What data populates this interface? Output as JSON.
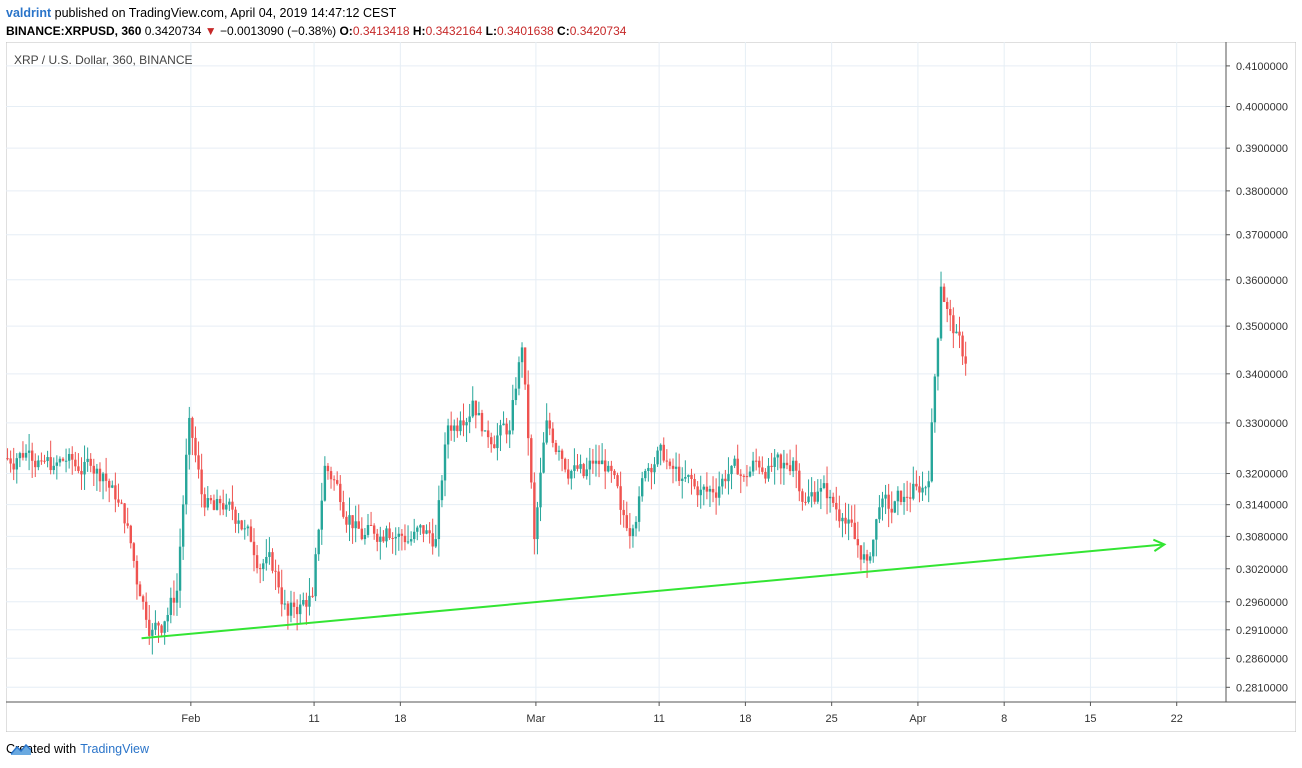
{
  "header": {
    "user": "valdrint",
    "published_text": "published on TradingView.com, April 04, 2019 14:47:12 CEST",
    "symbol": "BINANCE:XRPUSD, 360",
    "last_price": "0.3420734",
    "change": "−0.0013090 (−0.38%)",
    "open_label": "O:",
    "open": "0.3413418",
    "high_label": "H:",
    "high": "0.3432164",
    "low_label": "L:",
    "low": "0.3401638",
    "close_label": "C:",
    "close": "0.3420734"
  },
  "chart_title": "XRP / U.S. Dollar, 360, BINANCE",
  "footer": {
    "created_with": "Created with",
    "brand": "TradingView"
  },
  "colors": {
    "up": "#26a69a",
    "down": "#ef5350",
    "trendline": "#33e533",
    "grid": "#e6eef5",
    "axis_text": "#333333"
  },
  "chart_data": {
    "type": "candlestick",
    "title": "XRP / U.S. Dollar, 360, BINANCE",
    "y_scale": "log",
    "ylim": [
      0.2785,
      0.416
    ],
    "y_ticks": [
      "0.4100000",
      "0.4000000",
      "0.3900000",
      "0.3800000",
      "0.3700000",
      "0.3600000",
      "0.3500000",
      "0.3400000",
      "0.3300000",
      "0.3200000",
      "0.3140000",
      "0.3080000",
      "0.3020000",
      "0.2960000",
      "0.2910000",
      "0.2860000",
      "0.2810000"
    ],
    "x_ticks": [
      {
        "label": "Feb",
        "date": "2019-02-01"
      },
      {
        "label": "11",
        "date": "2019-02-11"
      },
      {
        "label": "18",
        "date": "2019-02-18"
      },
      {
        "label": "Mar",
        "date": "2019-03-01"
      },
      {
        "label": "11",
        "date": "2019-03-11"
      },
      {
        "label": "18",
        "date": "2019-03-18"
      },
      {
        "label": "25",
        "date": "2019-03-25"
      },
      {
        "label": "Apr",
        "date": "2019-04-01"
      },
      {
        "label": "8",
        "date": "2019-04-08"
      },
      {
        "label": "15",
        "date": "2019-04-15"
      },
      {
        "label": "22",
        "date": "2019-04-22"
      }
    ],
    "xlim": [
      "2019-01-17",
      "2019-04-26"
    ],
    "close_series_daily": [
      {
        "date": "2019-01-17",
        "close": 0.323
      },
      {
        "date": "2019-01-18",
        "close": 0.3245
      },
      {
        "date": "2019-01-19",
        "close": 0.3225
      },
      {
        "date": "2019-01-20",
        "close": 0.3215
      },
      {
        "date": "2019-01-21",
        "close": 0.3225
      },
      {
        "date": "2019-01-22",
        "close": 0.3205
      },
      {
        "date": "2019-01-23",
        "close": 0.3215
      },
      {
        "date": "2019-01-24",
        "close": 0.32
      },
      {
        "date": "2019-01-25",
        "close": 0.315
      },
      {
        "date": "2019-01-26",
        "close": 0.31
      },
      {
        "date": "2019-01-27",
        "close": 0.297
      },
      {
        "date": "2019-01-28",
        "close": 0.291
      },
      {
        "date": "2019-01-29",
        "close": 0.2925
      },
      {
        "date": "2019-01-30",
        "close": 0.298
      },
      {
        "date": "2019-01-31",
        "close": 0.331
      },
      {
        "date": "2019-02-01",
        "close": 0.316
      },
      {
        "date": "2019-02-02",
        "close": 0.313
      },
      {
        "date": "2019-02-03",
        "close": 0.314
      },
      {
        "date": "2019-02-04",
        "close": 0.311
      },
      {
        "date": "2019-02-05",
        "close": 0.307
      },
      {
        "date": "2019-02-06",
        "close": 0.303
      },
      {
        "date": "2019-02-07",
        "close": 0.3015
      },
      {
        "date": "2019-02-08",
        "close": 0.2935
      },
      {
        "date": "2019-02-09",
        "close": 0.2955
      },
      {
        "date": "2019-02-10",
        "close": 0.297
      },
      {
        "date": "2019-02-11",
        "close": 0.3215
      },
      {
        "date": "2019-02-12",
        "close": 0.318
      },
      {
        "date": "2019-02-13",
        "close": 0.312
      },
      {
        "date": "2019-02-14",
        "close": 0.3075
      },
      {
        "date": "2019-02-15",
        "close": 0.3085
      },
      {
        "date": "2019-02-16",
        "close": 0.3095
      },
      {
        "date": "2019-02-17",
        "close": 0.3085
      },
      {
        "date": "2019-02-18",
        "close": 0.3075
      },
      {
        "date": "2019-02-19",
        "close": 0.3085
      },
      {
        "date": "2019-02-20",
        "close": 0.3075
      },
      {
        "date": "2019-02-21",
        "close": 0.3295
      },
      {
        "date": "2019-02-22",
        "close": 0.3305
      },
      {
        "date": "2019-02-23",
        "close": 0.3345
      },
      {
        "date": "2019-02-24",
        "close": 0.3285
      },
      {
        "date": "2019-02-25",
        "close": 0.3275
      },
      {
        "date": "2019-02-26",
        "close": 0.3285
      },
      {
        "date": "2019-02-27",
        "close": 0.3455
      },
      {
        "date": "2019-02-28",
        "close": 0.3075
      },
      {
        "date": "2019-03-01",
        "close": 0.3305
      },
      {
        "date": "2019-03-02",
        "close": 0.3245
      },
      {
        "date": "2019-03-03",
        "close": 0.3205
      },
      {
        "date": "2019-03-04",
        "close": 0.3195
      },
      {
        "date": "2019-03-05",
        "close": 0.3225
      },
      {
        "date": "2019-03-06",
        "close": 0.3215
      },
      {
        "date": "2019-03-07",
        "close": 0.313
      },
      {
        "date": "2019-03-08",
        "close": 0.3095
      },
      {
        "date": "2019-03-09",
        "close": 0.3205
      },
      {
        "date": "2019-03-10",
        "close": 0.3245
      },
      {
        "date": "2019-03-11",
        "close": 0.3215
      },
      {
        "date": "2019-03-12",
        "close": 0.319
      },
      {
        "date": "2019-03-13",
        "close": 0.3175
      },
      {
        "date": "2019-03-14",
        "close": 0.3165
      },
      {
        "date": "2019-03-15",
        "close": 0.3175
      },
      {
        "date": "2019-03-16",
        "close": 0.3215
      },
      {
        "date": "2019-03-17",
        "close": 0.3195
      },
      {
        "date": "2019-03-18",
        "close": 0.3225
      },
      {
        "date": "2019-03-19",
        "close": 0.3215
      },
      {
        "date": "2019-03-20",
        "close": 0.321
      },
      {
        "date": "2019-03-21",
        "close": 0.3225
      },
      {
        "date": "2019-03-22",
        "close": 0.3145
      },
      {
        "date": "2019-03-23",
        "close": 0.3165
      },
      {
        "date": "2019-03-24",
        "close": 0.3155
      },
      {
        "date": "2019-03-25",
        "close": 0.3115
      },
      {
        "date": "2019-03-26",
        "close": 0.3075
      },
      {
        "date": "2019-03-27",
        "close": 0.3035
      },
      {
        "date": "2019-03-28",
        "close": 0.3135
      },
      {
        "date": "2019-03-29",
        "close": 0.3125
      },
      {
        "date": "2019-03-30",
        "close": 0.3155
      },
      {
        "date": "2019-03-31",
        "close": 0.3175
      },
      {
        "date": "2019-04-01",
        "close": 0.3185
      },
      {
        "date": "2019-04-02",
        "close": 0.3585
      },
      {
        "date": "2019-04-03",
        "close": 0.3485
      },
      {
        "date": "2019-04-04",
        "close": 0.3421
      }
    ],
    "annotations": [
      {
        "type": "trendline",
        "from": {
          "date": "2019-01-28",
          "price": 0.2895
        },
        "to": {
          "date": "2019-04-21",
          "price": 0.3065
        },
        "color": "#33e533",
        "arrow": true
      }
    ]
  }
}
